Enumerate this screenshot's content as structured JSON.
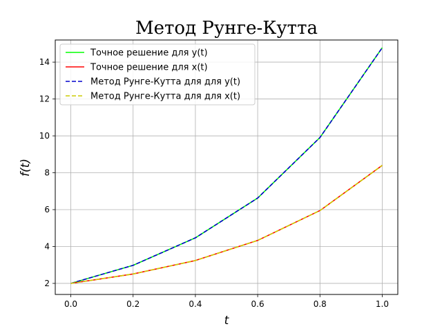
{
  "chart_data": {
    "type": "line",
    "title": "Метод Рунге-Кутта",
    "xlabel": "t",
    "ylabel": "f(t)",
    "xlim": [
      -0.05,
      1.05
    ],
    "ylim": [
      1.4,
      15.2
    ],
    "xticks": [
      "0.0",
      "0.2",
      "0.4",
      "0.6",
      "0.8",
      "1.0"
    ],
    "yticks": [
      "2",
      "4",
      "6",
      "8",
      "10",
      "12",
      "14"
    ],
    "grid": true,
    "legend_position": "top-left",
    "x": [
      0.0,
      0.2,
      0.4,
      0.6,
      0.8,
      1.0
    ],
    "series": [
      {
        "name": "Точное решение для y(t)",
        "color": "#00ff00",
        "style": "solid",
        "values": [
          2.0,
          2.98,
          4.47,
          6.63,
          9.91,
          14.78
        ]
      },
      {
        "name": "Точное решение для x(t)",
        "color": "#ff0000",
        "style": "solid",
        "values": [
          2.0,
          2.51,
          3.24,
          4.33,
          5.95,
          8.4
        ]
      },
      {
        "name": "Метод Рунге-Кутта для для y(t)",
        "color": "#0000cc",
        "style": "dashed",
        "values": [
          2.0,
          2.98,
          4.47,
          6.63,
          9.91,
          14.78
        ]
      },
      {
        "name": "Метод Рунге-Кутта для для x(t)",
        "color": "#cccc00",
        "style": "dashed",
        "values": [
          2.0,
          2.51,
          3.24,
          4.33,
          5.95,
          8.4
        ]
      }
    ]
  }
}
